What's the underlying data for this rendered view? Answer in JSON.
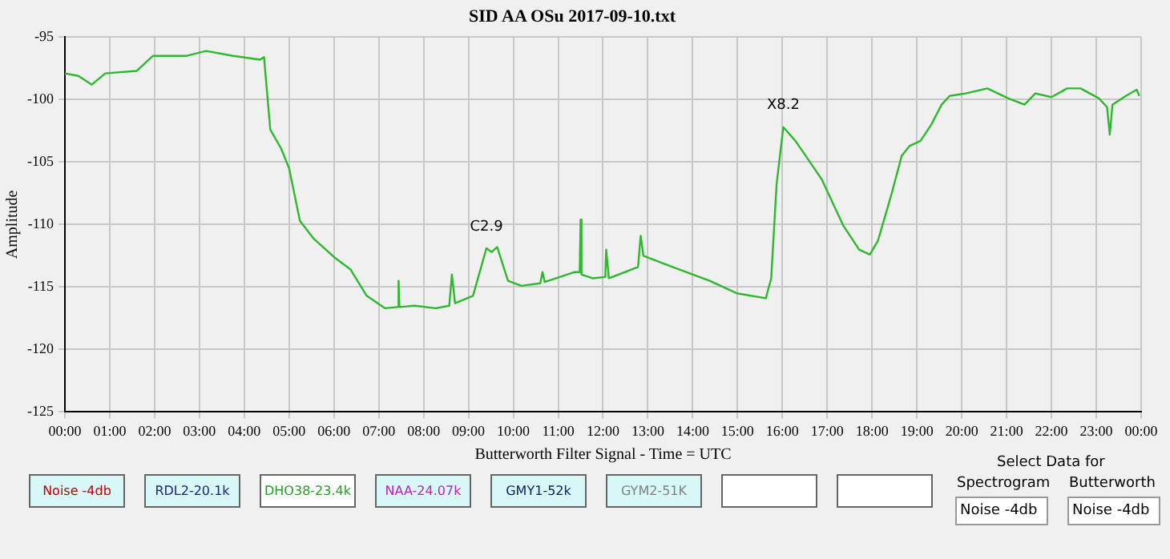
{
  "chart_data": {
    "type": "line",
    "title": "SID AA OSu 2017-09-10.txt",
    "xlabel": "Butterworth Filter Signal - Time = UTC",
    "ylabel": "Amplitude",
    "x": [
      0,
      0.3,
      0.6,
      0.9,
      1.6,
      1.96,
      2.7,
      3.15,
      3.75,
      4.35,
      4.44,
      4.58,
      4.82,
      5.0,
      5.24,
      5.54,
      6.0,
      6.37,
      6.73,
      7.14,
      7.42,
      7.44,
      7.46,
      7.8,
      8.27,
      8.57,
      8.63,
      8.7,
      9.1,
      9.4,
      9.52,
      9.64,
      9.88,
      10.18,
      10.6,
      10.65,
      10.7,
      11.37,
      11.48,
      11.5,
      11.52,
      11.77,
      12.05,
      12.07,
      12.13,
      12.78,
      12.84,
      12.9,
      13.55,
      14.38,
      14.98,
      15.63,
      15.75,
      15.87,
      16.02,
      16.29,
      16.52,
      16.88,
      17.36,
      17.71,
      17.95,
      18.13,
      18.43,
      18.66,
      18.84,
      19.08,
      19.32,
      19.55,
      19.73,
      20.09,
      20.57,
      21.04,
      21.4,
      21.64,
      22.0,
      22.35,
      22.65,
      23.06,
      23.24,
      23.3,
      23.36,
      23.66,
      23.9,
      23.96
    ],
    "series": [
      {
        "color": "#2eb82e",
        "values": [
          -97.9,
          -98.1,
          -98.8,
          -97.9,
          -97.7,
          -96.5,
          -96.5,
          -96.1,
          -96.5,
          -96.8,
          -96.6,
          -102.4,
          -103.9,
          -105.5,
          -109.7,
          -111.1,
          -112.6,
          -113.6,
          -115.7,
          -116.7,
          -116.6,
          -114.5,
          -116.6,
          -116.5,
          -116.7,
          -116.5,
          -114.0,
          -116.3,
          -115.7,
          -111.9,
          -112.2,
          -111.8,
          -114.5,
          -114.9,
          -114.7,
          -113.8,
          -114.6,
          -113.8,
          -113.8,
          -109.6,
          -114.0,
          -114.3,
          -114.2,
          -112.0,
          -114.3,
          -113.4,
          -110.9,
          -112.5,
          -113.4,
          -114.5,
          -115.5,
          -115.9,
          -114.3,
          -106.8,
          -102.2,
          -103.3,
          -104.5,
          -106.4,
          -110.1,
          -112.0,
          -112.4,
          -111.3,
          -107.6,
          -104.5,
          -103.7,
          -103.3,
          -102.0,
          -100.4,
          -99.7,
          -99.5,
          -99.1,
          -99.9,
          -100.4,
          -99.5,
          -99.8,
          -99.1,
          -99.1,
          -99.9,
          -100.6,
          -102.8,
          -100.4,
          -99.7,
          -99.2,
          -99.7
        ]
      }
    ],
    "xlim": [
      0,
      24
    ],
    "xticks": [
      {
        "value": 0,
        "label": "00:00"
      },
      {
        "value": 1,
        "label": "01:00"
      },
      {
        "value": 2,
        "label": "02:00"
      },
      {
        "value": 3,
        "label": "03:00"
      },
      {
        "value": 4,
        "label": "04:00"
      },
      {
        "value": 5,
        "label": "05:00"
      },
      {
        "value": 6,
        "label": "06:00"
      },
      {
        "value": 7,
        "label": "07:00"
      },
      {
        "value": 8,
        "label": "08:00"
      },
      {
        "value": 9,
        "label": "09:00"
      },
      {
        "value": 10,
        "label": "10:00"
      },
      {
        "value": 11,
        "label": "11:00"
      },
      {
        "value": 12,
        "label": "12:00"
      },
      {
        "value": 13,
        "label": "13:00"
      },
      {
        "value": 14,
        "label": "14:00"
      },
      {
        "value": 15,
        "label": "15:00"
      },
      {
        "value": 16,
        "label": "16:00"
      },
      {
        "value": 17,
        "label": "17:00"
      },
      {
        "value": 18,
        "label": "18:00"
      },
      {
        "value": 19,
        "label": "19:00"
      },
      {
        "value": 20,
        "label": "20:00"
      },
      {
        "value": 21,
        "label": "21:00"
      },
      {
        "value": 22,
        "label": "22:00"
      },
      {
        "value": 23,
        "label": "23:00"
      },
      {
        "value": 24,
        "label": "00:00"
      }
    ],
    "ylim": [
      -125,
      -95
    ],
    "yticks": [
      -125,
      -120,
      -115,
      -110,
      -105,
      -100,
      -95
    ],
    "grid": true,
    "marker": "none",
    "line_style": "solid",
    "annotations": [
      {
        "text": "C2.9",
        "x": 9.4,
        "y": -111.9
      },
      {
        "text": "X8.2",
        "x": 16.02,
        "y": -102.2
      },
      "Noise -4db",
      "RDL2-20.1k",
      "DHO38-23.4k",
      "NAA-24.07k",
      "GMY1-52k",
      "GYM2-51K",
      "Select Data for",
      "Spectrogram",
      "Butterworth",
      "Noise -4db",
      "Noise -4db"
    ]
  }
}
